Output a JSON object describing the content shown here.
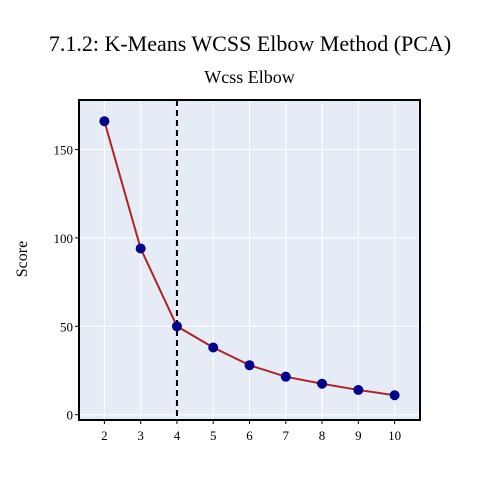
{
  "chart_data": {
    "type": "line",
    "title": "7.1.2: K-Means WCSS Elbow Method (PCA)",
    "subtitle": "Wcss Elbow",
    "xlabel": "",
    "ylabel": "Score",
    "x": [
      2,
      3,
      4,
      5,
      6,
      7,
      8,
      9,
      10
    ],
    "series": [
      {
        "values": [
          166,
          94,
          50,
          38,
          28,
          21.5,
          17.5,
          14,
          11
        ]
      }
    ],
    "xlim": [
      1.3,
      10.7
    ],
    "ylim": [
      -3,
      178
    ],
    "xticks": [
      2,
      3,
      4,
      5,
      6,
      7,
      8,
      9,
      10
    ],
    "yticks": [
      0,
      50,
      100,
      150
    ],
    "elbow_x": 4,
    "grid": true,
    "legend": "none",
    "colors": {
      "plot_background": "#e5ecf6",
      "grid": "#ffffff",
      "line": "#b22222",
      "marker": "#00008b",
      "elbow_line": "#000000"
    }
  }
}
